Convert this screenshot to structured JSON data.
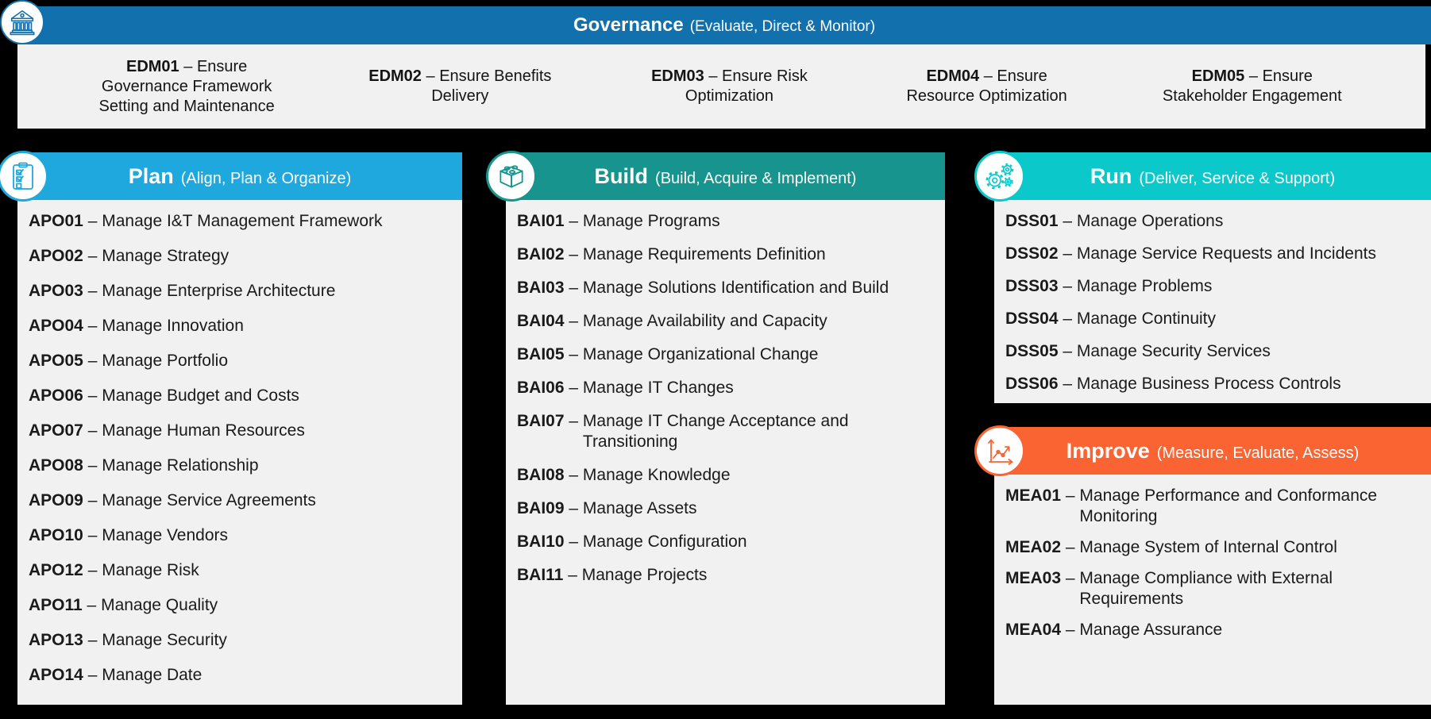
{
  "sep": "–",
  "governance": {
    "title": "Governance",
    "subtitle": "(Evaluate, Direct & Monitor)",
    "icon": "bank-icon",
    "color": "#1271AC",
    "items": [
      {
        "code": "EDM01",
        "label": "Ensure Governance Framework Setting and Maintenance"
      },
      {
        "code": "EDM02",
        "label": "Ensure Benefits Delivery"
      },
      {
        "code": "EDM03",
        "label": "Ensure Risk Optimization"
      },
      {
        "code": "EDM04",
        "label": "Ensure Resource Optimization"
      },
      {
        "code": "EDM05",
        "label": "Ensure Stakeholder Engagement"
      }
    ]
  },
  "columns": [
    {
      "title": "Plan",
      "subtitle": "(Align, Plan & Organize)",
      "icon": "clipboard-checklist-icon",
      "color": "#1EA8DE",
      "items": [
        {
          "code": "APO01",
          "label": "Manage I&T Management Framework"
        },
        {
          "code": "APO02",
          "label": "Manage Strategy"
        },
        {
          "code": "APO03",
          "label": "Manage Enterprise Architecture"
        },
        {
          "code": "APO04",
          "label": "Manage Innovation"
        },
        {
          "code": "APO05",
          "label": "Manage Portfolio"
        },
        {
          "code": "APO06",
          "label": "Manage Budget and Costs"
        },
        {
          "code": "APO07",
          "label": "Manage Human Resources"
        },
        {
          "code": "APO08",
          "label": "Manage Relationship"
        },
        {
          "code": "APO09",
          "label": "Manage Service Agreements"
        },
        {
          "code": "APO10",
          "label": "Manage Vendors"
        },
        {
          "code": "APO12",
          "label": "Manage Risk"
        },
        {
          "code": "APO11",
          "label": "Manage Quality"
        },
        {
          "code": "APO13",
          "label": "Manage Security"
        },
        {
          "code": "APO14",
          "label": "Manage Date"
        }
      ]
    },
    {
      "title": "Build",
      "subtitle": "(Build, Acquire & Implement)",
      "icon": "lego-brick-icon",
      "color": "#16948D",
      "items": [
        {
          "code": "BAI01",
          "label": "Manage Programs"
        },
        {
          "code": "BAI02",
          "label": "Manage Requirements Definition"
        },
        {
          "code": "BAI03",
          "label": "Manage Solutions Identification and Build"
        },
        {
          "code": "BAI04",
          "label": "Manage Availability and Capacity"
        },
        {
          "code": "BAI05",
          "label": "Manage Organizational Change"
        },
        {
          "code": "BAI06",
          "label": "Manage IT Changes"
        },
        {
          "code": "BAI07",
          "label": "Manage IT Change Acceptance and Transitioning"
        },
        {
          "code": "BAI08",
          "label": "Manage Knowledge"
        },
        {
          "code": "BAI09",
          "label": "Manage Assets"
        },
        {
          "code": "BAI10",
          "label": "Manage Configuration"
        },
        {
          "code": "BAI11",
          "label": "Manage Projects"
        }
      ]
    },
    {
      "title": "Run",
      "subtitle": "(Deliver, Service & Support)",
      "icon": "gears-icon",
      "color": "#0BC8CB",
      "items": [
        {
          "code": "DSS01",
          "label": "Manage Operations"
        },
        {
          "code": "DSS02",
          "label": "Manage Service Requests and Incidents"
        },
        {
          "code": "DSS03",
          "label": "Manage Problems"
        },
        {
          "code": "DSS04",
          "label": "Manage Continuity"
        },
        {
          "code": "DSS05",
          "label": "Manage Security Services"
        },
        {
          "code": "DSS06",
          "label": "Manage Business Process Controls"
        }
      ]
    },
    {
      "title": "Improve",
      "subtitle": "(Measure, Evaluate, Assess)",
      "icon": "line-chart-icon",
      "color": "#FA6332",
      "items": [
        {
          "code": "MEA01",
          "label": "Manage Performance and Conformance Monitoring"
        },
        {
          "code": "MEA02",
          "label": "Manage System of Internal Control"
        },
        {
          "code": "MEA03",
          "label": "Manage Compliance with External Requirements"
        },
        {
          "code": "MEA04",
          "label": "Manage Assurance"
        }
      ]
    }
  ],
  "colors": {
    "governance_bar": "#1271AC",
    "plan_bar": "#1EA8DE",
    "build_bar": "#16948D",
    "run_bar": "#0BC8CB",
    "improve_bar": "#FA6332",
    "panel_background": "#F2F1F1",
    "page_background": "#000000",
    "header_text": "#FFFFFF",
    "item_text": "#1A1A1A"
  }
}
